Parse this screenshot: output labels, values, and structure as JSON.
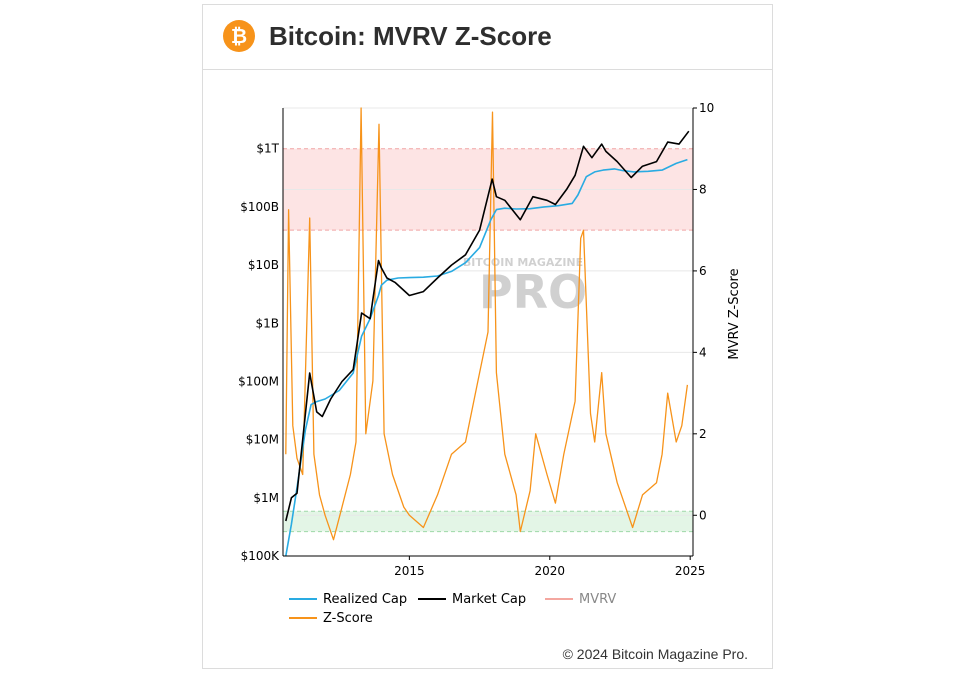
{
  "header": {
    "title": "Bitcoin: MVRV Z-Score",
    "logo_icon": "bitcoin-icon",
    "logo_glyph": "₿"
  },
  "watermark": {
    "top": "BITCOIN MAGAZINE",
    "main": "PRO"
  },
  "copyright": "© 2024 Bitcoin Magazine Pro.",
  "colors": {
    "realized": "#29abe2",
    "market": "#000000",
    "mvrv": "#f4a7a0",
    "zscore": "#f7931a",
    "top_band": "#fde4e4",
    "bottom_band": "#e3f5e6"
  },
  "chart_data": {
    "type": "line",
    "title": "Bitcoin: MVRV Z-Score",
    "xlabel": "",
    "ylabel_left": "",
    "ylabel_right": "MVRV Z-Score",
    "x_range": [
      2010.5,
      2025.1
    ],
    "x_ticks": [
      2015,
      2020,
      2025
    ],
    "y_left_ticks": [
      "$100K",
      "$1M",
      "$10M",
      "$100M",
      "$1B",
      "$10B",
      "$100B",
      "$1T"
    ],
    "y_left_range_log10": [
      5,
      12.7
    ],
    "y_right_range": [
      -1,
      10
    ],
    "y_right_ticks": [
      0,
      2,
      4,
      6,
      8,
      10
    ],
    "bands": [
      {
        "name": "top",
        "from": 7,
        "to": 9
      },
      {
        "name": "bottom",
        "from": -0.4,
        "to": 0.1
      }
    ],
    "legend": [
      "Realized Cap",
      "Market Cap",
      "MVRV",
      "Z-Score"
    ],
    "legend_position": "bottom",
    "series": [
      {
        "name": "Realized Cap",
        "axis": "left",
        "x": [
          2010.6,
          2010.8,
          2011.0,
          2011.3,
          2011.5,
          2011.7,
          2012.0,
          2012.5,
          2013.0,
          2013.3,
          2013.6,
          2013.9,
          2014.0,
          2014.2,
          2014.6,
          2015.0,
          2015.5,
          2016.0,
          2016.5,
          2017.0,
          2017.5,
          2017.9,
          2018.1,
          2018.4,
          2018.8,
          2019.3,
          2019.8,
          2020.3,
          2020.8,
          2021.0,
          2021.3,
          2021.6,
          2021.9,
          2022.3,
          2022.6,
          2023.0,
          2023.5,
          2024.0,
          2024.5,
          2024.9
        ],
        "y": [
          100000,
          350000,
          1500000,
          15000000,
          40000000,
          45000000,
          50000000,
          70000000,
          140000000,
          600000000,
          1200000000,
          3000000000,
          4500000000,
          5500000000,
          6000000000,
          6100000000,
          6200000000,
          6500000000,
          7800000000,
          11000000000,
          20000000000,
          60000000000,
          90000000000,
          95000000000,
          92000000000,
          93000000000,
          100000000000,
          105000000000,
          115000000000,
          160000000000,
          330000000000,
          400000000000,
          430000000000,
          450000000000,
          420000000000,
          400000000000,
          410000000000,
          430000000000,
          560000000000,
          650000000000
        ]
      },
      {
        "name": "Market Cap",
        "axis": "left",
        "x": [
          2010.6,
          2010.8,
          2011.0,
          2011.2,
          2011.45,
          2011.7,
          2011.9,
          2012.2,
          2012.6,
          2013.0,
          2013.3,
          2013.6,
          2013.9,
          2014.0,
          2014.2,
          2014.5,
          2015.0,
          2015.5,
          2016.0,
          2016.5,
          2017.0,
          2017.5,
          2017.95,
          2018.1,
          2018.4,
          2018.95,
          2019.4,
          2019.9,
          2020.2,
          2020.6,
          2020.9,
          2021.2,
          2021.5,
          2021.85,
          2022.0,
          2022.4,
          2022.9,
          2023.3,
          2023.8,
          2024.2,
          2024.6,
          2024.95
        ],
        "y": [
          400000,
          1000000,
          1200000,
          10000000,
          140000000,
          30000000,
          25000000,
          50000000,
          100000000,
          160000000,
          1500000000,
          1200000000,
          12000000000,
          9000000000,
          6000000000,
          5000000000,
          3000000000,
          3500000000,
          6000000000,
          10000000000,
          15000000000,
          40000000000,
          300000000000,
          150000000000,
          130000000000,
          60000000000,
          150000000000,
          130000000000,
          110000000000,
          200000000000,
          350000000000,
          1100000000000,
          700000000000,
          1200000000000,
          900000000000,
          600000000000,
          320000000000,
          500000000000,
          600000000000,
          1300000000000,
          1200000000000,
          2000000000000
        ]
      },
      {
        "name": "Z-Score",
        "axis": "right",
        "x": [
          2010.6,
          2010.7,
          2010.85,
          2011.0,
          2011.2,
          2011.45,
          2011.6,
          2011.8,
          2012.0,
          2012.3,
          2012.6,
          2012.9,
          2013.1,
          2013.28,
          2013.45,
          2013.7,
          2013.92,
          2014.1,
          2014.4,
          2014.8,
          2015.0,
          2015.5,
          2016.0,
          2016.5,
          2017.0,
          2017.5,
          2017.8,
          2017.96,
          2018.1,
          2018.4,
          2018.8,
          2018.95,
          2019.3,
          2019.5,
          2019.9,
          2020.2,
          2020.5,
          2020.9,
          2021.1,
          2021.2,
          2021.45,
          2021.6,
          2021.85,
          2022.0,
          2022.4,
          2022.8,
          2022.95,
          2023.3,
          2023.8,
          2024.0,
          2024.2,
          2024.5,
          2024.7,
          2024.9
        ],
        "y": [
          1.5,
          7.5,
          2.2,
          1.4,
          1.0,
          7.3,
          1.5,
          0.5,
          0.0,
          -0.6,
          0.2,
          1.0,
          1.8,
          10.0,
          2.0,
          3.3,
          9.6,
          2.0,
          1.0,
          0.2,
          0.0,
          -0.3,
          0.5,
          1.5,
          1.8,
          3.5,
          4.5,
          9.9,
          3.5,
          1.5,
          0.5,
          -0.4,
          0.6,
          2.0,
          1.0,
          0.3,
          1.5,
          2.8,
          6.8,
          7.0,
          2.5,
          1.8,
          3.5,
          2.0,
          0.8,
          0.0,
          -0.3,
          0.5,
          0.8,
          1.5,
          3.0,
          1.8,
          2.2,
          3.2
        ]
      }
    ]
  }
}
